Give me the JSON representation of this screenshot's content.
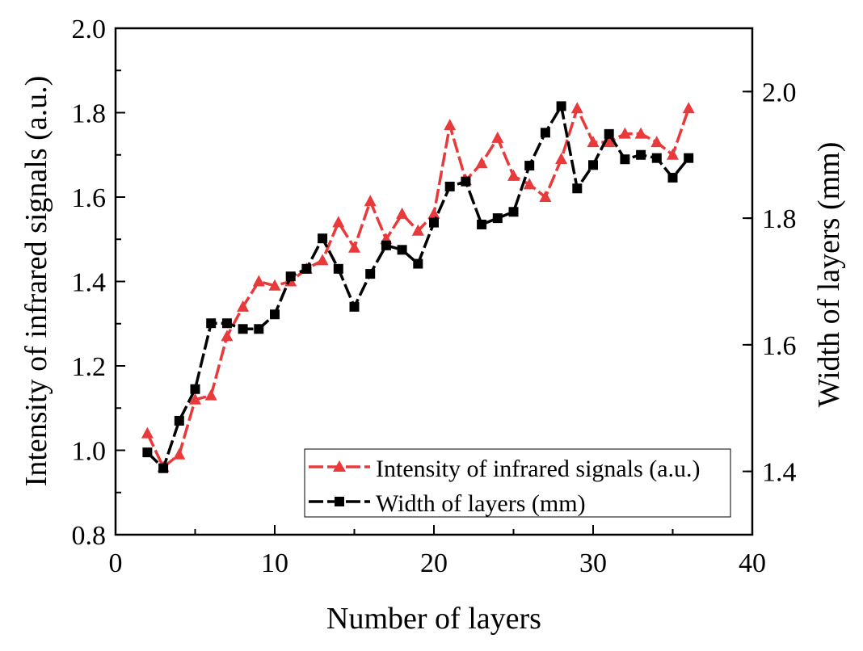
{
  "chart_data": {
    "type": "line",
    "title": "",
    "xlabel": "Number of layers",
    "ylabel": "Intensity of infrared signals (a.u.)",
    "y2label": "Width of layers (mm)",
    "xlim": [
      0,
      40
    ],
    "ylim": [
      0.8,
      2.0
    ],
    "y2lim": [
      1.3,
      2.1
    ],
    "x_ticks": [
      "0",
      "10",
      "20",
      "30",
      "40"
    ],
    "y_ticks": [
      "0.8",
      "1.0",
      "1.2",
      "1.4",
      "1.6",
      "1.8",
      "2.0"
    ],
    "y2_ticks": [
      "1.4",
      "1.6",
      "1.8",
      "2.0"
    ],
    "grid": false,
    "legend_position": "bottom-right",
    "x": [
      2,
      3,
      4,
      5,
      6,
      7,
      8,
      9,
      10,
      11,
      12,
      13,
      14,
      15,
      16,
      17,
      18,
      19,
      20,
      21,
      22,
      23,
      24,
      25,
      26,
      27,
      28,
      29,
      30,
      31,
      32,
      33,
      34,
      35,
      36
    ],
    "series": [
      {
        "name": "Intensity of infrared signals (a.u.)",
        "axis": "left",
        "color": "#e8393b",
        "marker": "triangle",
        "values": [
          1.04,
          0.96,
          0.99,
          1.12,
          1.13,
          1.27,
          1.34,
          1.4,
          1.39,
          1.4,
          1.43,
          1.45,
          1.54,
          1.48,
          1.59,
          1.5,
          1.56,
          1.52,
          1.56,
          1.77,
          1.64,
          1.68,
          1.74,
          1.65,
          1.63,
          1.6,
          1.69,
          1.81,
          1.73,
          1.73,
          1.75,
          1.75,
          1.73,
          1.7,
          1.81
        ]
      },
      {
        "name": "Width of layers (mm)",
        "axis": "right",
        "color": "#000000",
        "marker": "square",
        "values": [
          1.43,
          1.405,
          1.48,
          1.53,
          1.634,
          1.634,
          1.625,
          1.625,
          1.648,
          1.708,
          1.72,
          1.768,
          1.72,
          1.66,
          1.712,
          1.757,
          1.75,
          1.728,
          1.793,
          1.85,
          1.858,
          1.79,
          1.8,
          1.81,
          1.883,
          1.935,
          1.977,
          1.847,
          1.884,
          1.933,
          1.893,
          1.9,
          1.895,
          1.864,
          1.895
        ]
      }
    ]
  }
}
